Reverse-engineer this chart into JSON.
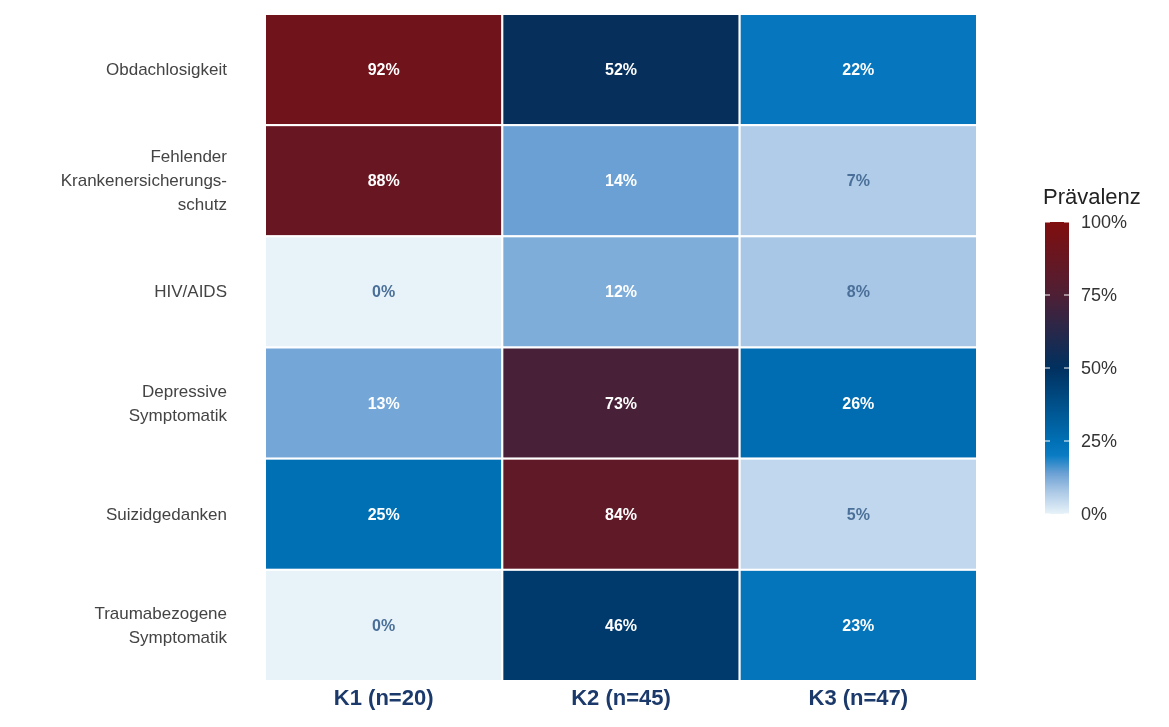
{
  "chart_data": {
    "type": "heatmap",
    "categories": [
      "K1 (n=20)",
      "K2 (n=45)",
      "K3 (n=47)"
    ],
    "y_categories": [
      "Obdachlosigkeit",
      "Fehlender\nKrankenersicherungs-\nschutz",
      "HIV/AIDS",
      "Depressive\nSymptomatik",
      "Suizidgedanken",
      "Traumabezogene\nSymptomatik"
    ],
    "cells": [
      [
        92,
        52,
        22
      ],
      [
        88,
        14,
        7
      ],
      [
        0,
        12,
        8
      ],
      [
        13,
        73,
        26
      ],
      [
        25,
        84,
        5
      ],
      [
        0,
        46,
        23
      ]
    ],
    "cell_labels": [
      [
        "92%",
        "52%",
        "22%"
      ],
      [
        "88%",
        "14%",
        "7%"
      ],
      [
        "0%",
        "12%",
        "8%"
      ],
      [
        "13%",
        "73%",
        "26%"
      ],
      [
        "25%",
        "84%",
        "5%"
      ],
      [
        "0%",
        "46%",
        "23%"
      ]
    ],
    "clabel": "Prävalenz",
    "clim": [
      0,
      100
    ],
    "cticks": [
      {
        "value": 0,
        "label": "0%"
      },
      {
        "value": 25,
        "label": "25%"
      },
      {
        "value": 50,
        "label": "50%"
      },
      {
        "value": 75,
        "label": "75%"
      },
      {
        "value": 100,
        "label": "100%"
      }
    ]
  }
}
